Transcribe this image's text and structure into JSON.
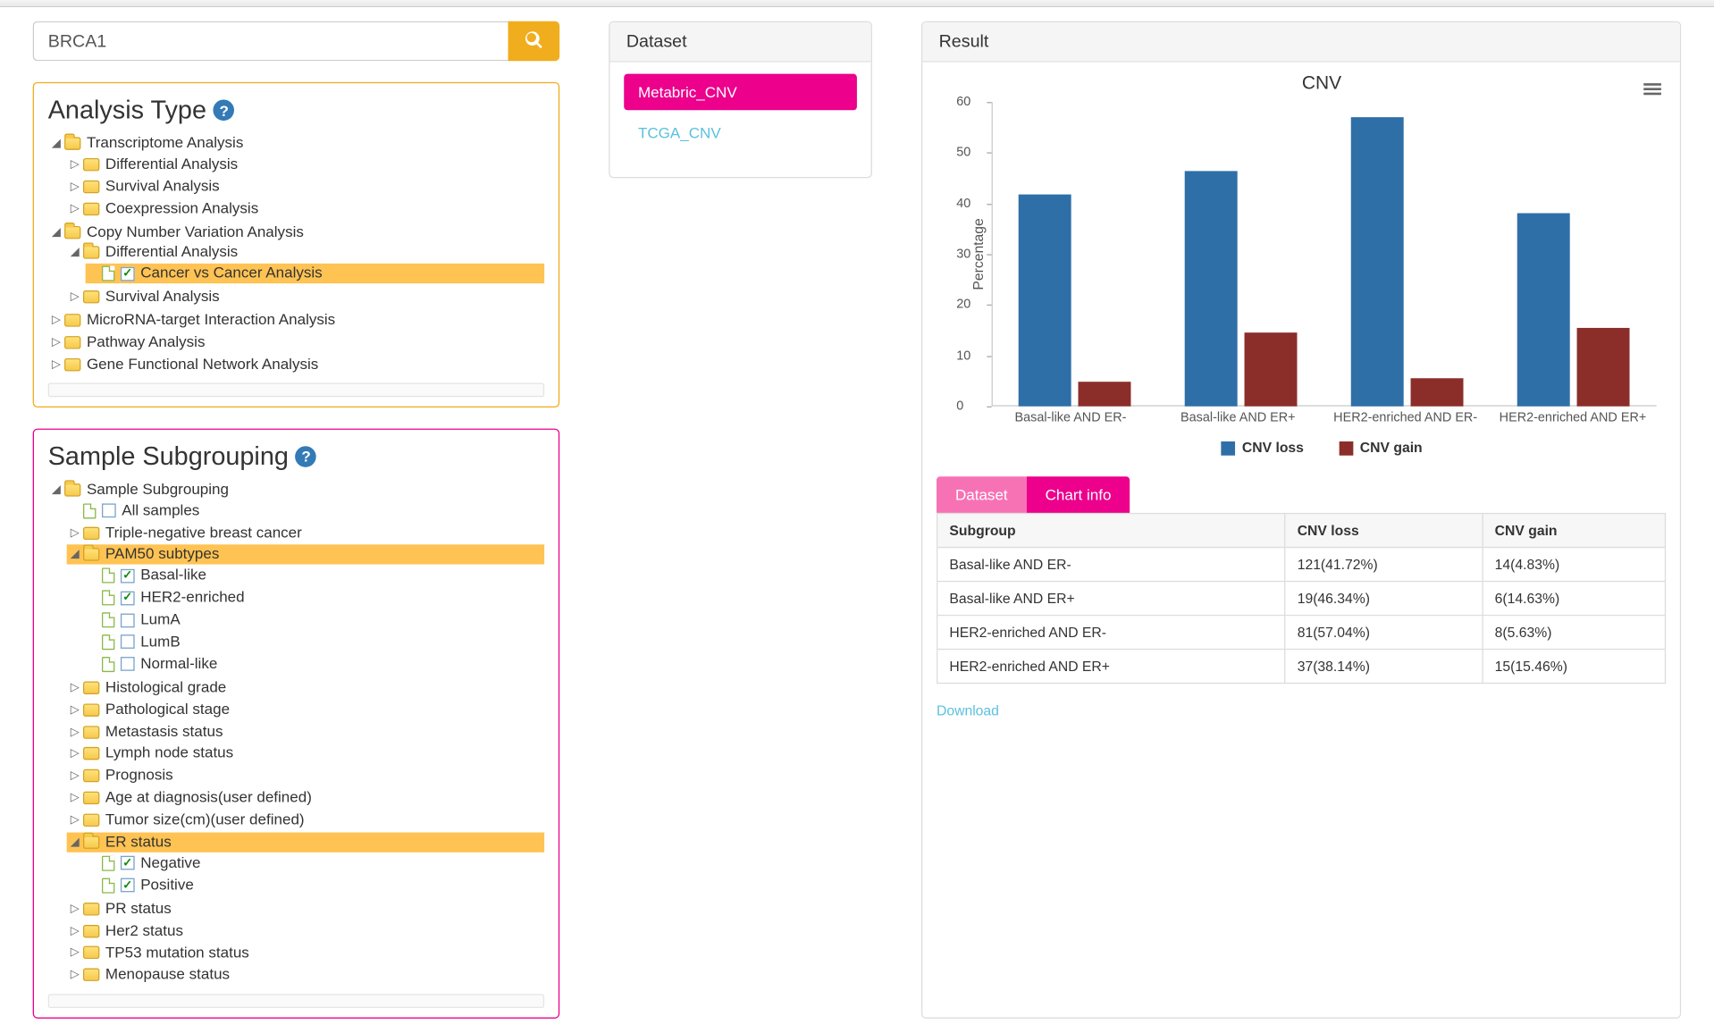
{
  "search": {
    "value": "BRCA1"
  },
  "analysis_panel": {
    "title": "Analysis Type",
    "tree": [
      {
        "label": "Transcriptome Analysis",
        "open": true,
        "children": [
          {
            "label": "Differential Analysis"
          },
          {
            "label": "Survival Analysis"
          },
          {
            "label": "Coexpression Analysis"
          }
        ]
      },
      {
        "label": "Copy Number Variation Analysis",
        "open": true,
        "children": [
          {
            "label": "Differential Analysis",
            "open": true,
            "children": [
              {
                "label": "Cancer vs Cancer Analysis",
                "leaf": true,
                "checked": true,
                "selected": true
              }
            ]
          },
          {
            "label": "Survival Analysis"
          }
        ]
      },
      {
        "label": "MicroRNA-target Interaction Analysis"
      },
      {
        "label": "Pathway Analysis"
      },
      {
        "label": "Gene Functional Network Analysis"
      }
    ]
  },
  "subgroup_panel": {
    "title": "Sample Subgrouping",
    "tree": [
      {
        "label": "Sample Subgrouping",
        "open": true,
        "children": [
          {
            "label": "All samples",
            "leaf": true,
            "checked": false
          },
          {
            "label": "Triple-negative breast cancer"
          },
          {
            "label": "PAM50 subtypes",
            "open": true,
            "selected": true,
            "children": [
              {
                "label": "Basal-like",
                "leaf": true,
                "checked": true
              },
              {
                "label": "HER2-enriched",
                "leaf": true,
                "checked": true
              },
              {
                "label": "LumA",
                "leaf": true,
                "checked": false
              },
              {
                "label": "LumB",
                "leaf": true,
                "checked": false
              },
              {
                "label": "Normal-like",
                "leaf": true,
                "checked": false
              }
            ]
          },
          {
            "label": "Histological grade"
          },
          {
            "label": "Pathological stage"
          },
          {
            "label": "Metastasis status"
          },
          {
            "label": "Lymph node status"
          },
          {
            "label": "Prognosis"
          },
          {
            "label": "Age at diagnosis(user defined)"
          },
          {
            "label": "Tumor size(cm)(user defined)"
          },
          {
            "label": "ER status",
            "open": true,
            "selected": true,
            "children": [
              {
                "label": "Negative",
                "leaf": true,
                "checked": true
              },
              {
                "label": "Positive",
                "leaf": true,
                "checked": true
              }
            ]
          },
          {
            "label": "PR status"
          },
          {
            "label": "Her2 status"
          },
          {
            "label": "TP53 mutation status"
          },
          {
            "label": "Menopause status"
          }
        ]
      }
    ]
  },
  "dataset_panel": {
    "title": "Dataset",
    "items": [
      {
        "label": "Metabric_CNV",
        "active": true
      },
      {
        "label": "TCGA_CNV",
        "active": false
      }
    ]
  },
  "result_panel": {
    "title": "Result",
    "tabs": {
      "a": "Dataset",
      "b": "Chart info"
    },
    "download": "Download",
    "table": {
      "columns": [
        "Subgroup",
        "CNV loss",
        "CNV gain"
      ],
      "rows": [
        [
          "Basal-like AND ER-",
          "121(41.72%)",
          "14(4.83%)"
        ],
        [
          "Basal-like AND ER+",
          "19(46.34%)",
          "6(14.63%)"
        ],
        [
          "HER2-enriched AND ER-",
          "81(57.04%)",
          "8(5.63%)"
        ],
        [
          "HER2-enriched AND ER+",
          "37(38.14%)",
          "15(15.46%)"
        ]
      ]
    }
  },
  "chart": {
    "type": "bar",
    "title": "CNV",
    "ylabel": "Percentage",
    "ylim": [
      0,
      60
    ],
    "ytick_step": 10,
    "categories": [
      "Basal-like AND ER-",
      "Basal-like AND ER+",
      "HER2-enriched AND ER-",
      "HER2-enriched AND ER+"
    ],
    "series": [
      {
        "name": "CNV loss",
        "color": "#2f6fa7",
        "values": [
          41.72,
          46.34,
          57.04,
          38.14
        ]
      },
      {
        "name": "CNV gain",
        "color": "#8b2e2a",
        "values": [
          4.83,
          14.63,
          5.63,
          15.46
        ]
      }
    ],
    "bar_width_pct": 8,
    "group_gap_pct": 25,
    "background_color": "#ffffff",
    "axis_color": "#cccccc"
  }
}
